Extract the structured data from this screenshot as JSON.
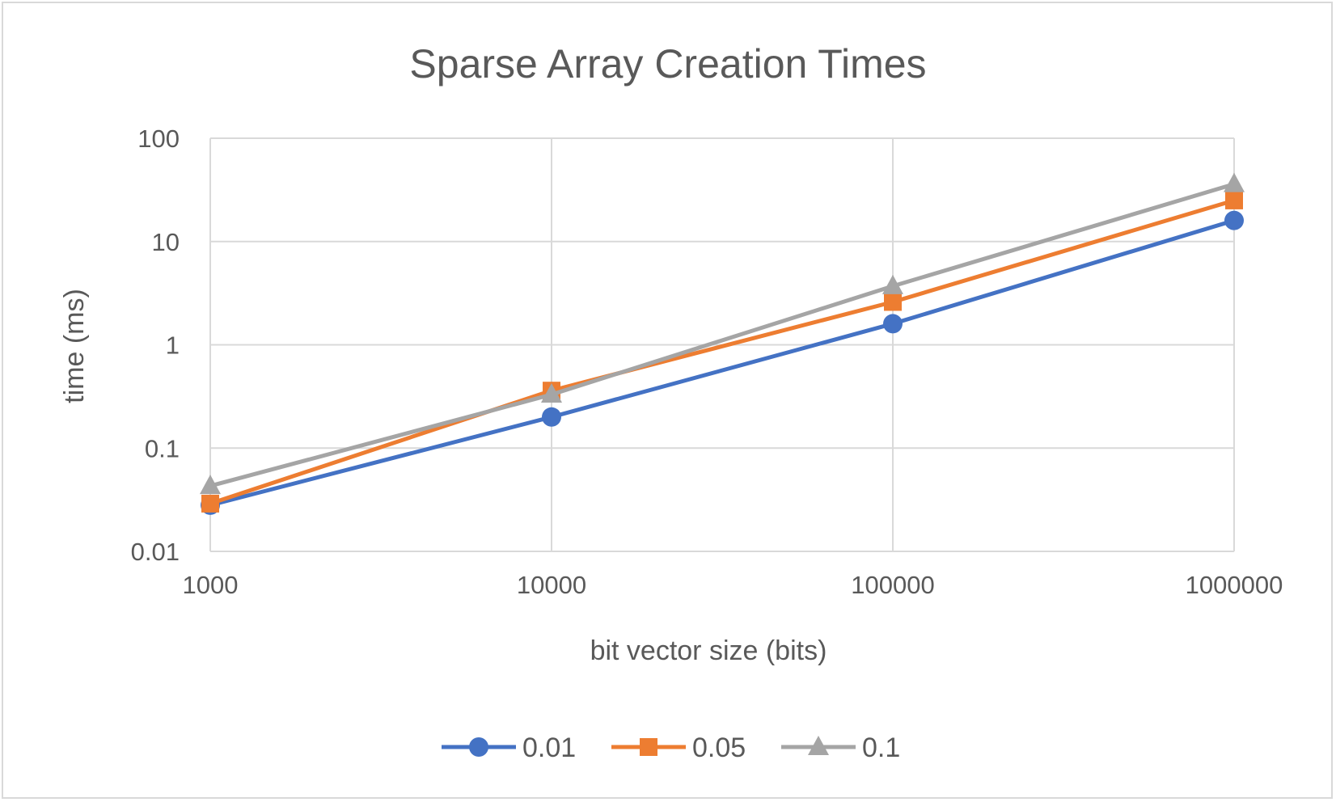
{
  "chart_data": {
    "type": "line",
    "title": "Sparse Array Creation Times",
    "xlabel": "bit vector size (bits)",
    "ylabel": "time (ms)",
    "x_scale": "log",
    "y_scale": "log",
    "categories": [
      1000,
      10000,
      100000,
      1000000
    ],
    "x_tick_labels": [
      "1000",
      "10000",
      "100000",
      "1000000"
    ],
    "y_tick_labels": [
      "100",
      "10",
      "1",
      "0.1",
      "0.01"
    ],
    "ylim": [
      0.01,
      100
    ],
    "grid": true,
    "legend_position": "bottom",
    "series": [
      {
        "name": "0.01",
        "values": [
          0.028,
          0.2,
          1.6,
          16
        ],
        "color": "#4472c4",
        "marker": "circle"
      },
      {
        "name": "0.05",
        "values": [
          0.029,
          0.36,
          2.6,
          25
        ],
        "color": "#ed7d31",
        "marker": "square"
      },
      {
        "name": "0.1",
        "values": [
          0.043,
          0.33,
          3.7,
          36
        ],
        "color": "#a5a5a5",
        "marker": "triangle"
      }
    ]
  }
}
